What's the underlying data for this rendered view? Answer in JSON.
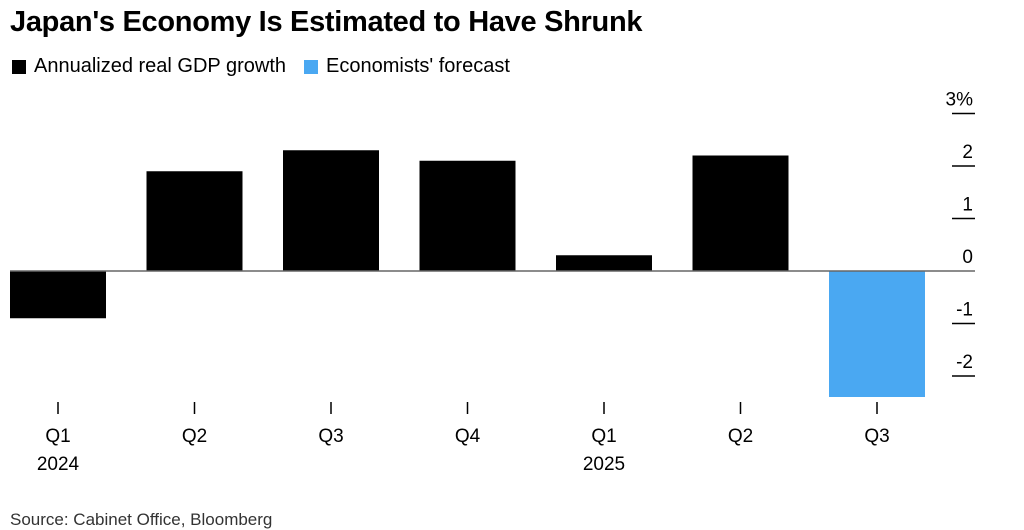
{
  "chart_data": {
    "type": "bar",
    "title": "Japan's Economy Is Estimated to Have Shrunk",
    "legend": [
      {
        "label": "Annualized real GDP growth",
        "color": "#000000"
      },
      {
        "label": "Economists' forecast",
        "color": "#4aa8f2"
      }
    ],
    "categories": [
      "Q1",
      "Q2",
      "Q3",
      "Q4",
      "Q1",
      "Q2",
      "Q3"
    ],
    "year_labels": [
      "2024",
      "",
      "",
      "",
      "2025",
      "",
      ""
    ],
    "values": [
      -0.9,
      1.9,
      2.3,
      2.1,
      0.3,
      2.2,
      -2.4
    ],
    "bar_colors": [
      "#000000",
      "#000000",
      "#000000",
      "#000000",
      "#000000",
      "#000000",
      "#4aa8f2"
    ],
    "ylim": [
      -2.4,
      3
    ],
    "y_ticks": [
      3,
      2,
      1,
      0,
      -1,
      -2
    ],
    "y_tick_labels": [
      "3%",
      "2",
      "1",
      "0",
      "-1",
      "-2"
    ],
    "xlabel": "",
    "ylabel": "",
    "source": "Source: Cabinet Office, Bloomberg"
  }
}
